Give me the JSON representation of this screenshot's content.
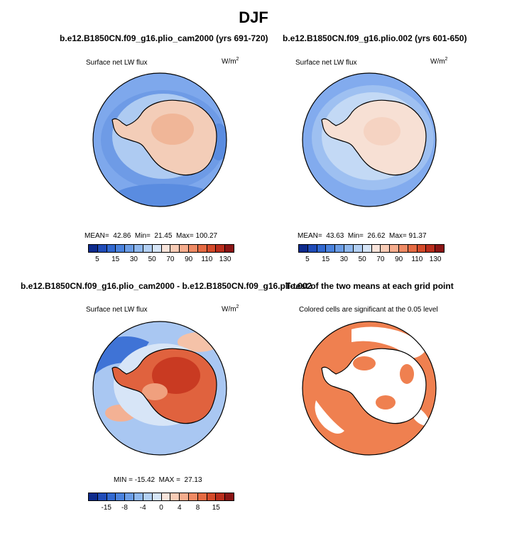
{
  "figure_title": "DJF",
  "units_label": "W/m",
  "units_exp": "2",
  "panels": [
    {
      "title": "b.e12.B1850CN.f09_g16.plio_cam2000 (yrs 691-720)",
      "variable": "Surface net LW flux",
      "stats": {
        "mean_label": "MEAN=",
        "mean": "42.86",
        "min_label": "Min=",
        "min": "21.45",
        "max_label": "Max=",
        "max": "100.27"
      }
    },
    {
      "title": "b.e12.B1850CN.f09_g16.plio.002 (yrs 601-650)",
      "variable": "Surface net LW flux",
      "stats": {
        "mean_label": "MEAN=",
        "mean": "43.63",
        "min_label": "Min=",
        "min": "26.62",
        "max_label": "Max=",
        "max": "91.37"
      }
    },
    {
      "title": "b.e12.B1850CN.f09_g16.plio_cam2000 - b.e12.B1850CN.f09_g16.plio.002",
      "variable": "Surface net LW flux",
      "stats": {
        "min_label": "MIN =",
        "min": "-15.42",
        "max_label": "MAX =",
        "max": "27.13"
      }
    },
    {
      "title": "T-test of the two means at each grid point",
      "note": "Colored cells are significant at the 0.05 level"
    }
  ],
  "colorbar_abs": {
    "colors": [
      "#0d2a8c",
      "#1f4bb8",
      "#3168d0",
      "#4a82dd",
      "#6b9de6",
      "#8fb8ee",
      "#b3d0f4",
      "#d6e5f7",
      "#f7e3da",
      "#f8cbb5",
      "#f5ac8d",
      "#ef8a64",
      "#e56a42",
      "#d44a2a",
      "#b92d1c",
      "#8a1414"
    ],
    "ticks": [
      "5",
      "15",
      "30",
      "50",
      "70",
      "90",
      "110",
      "130"
    ]
  },
  "colorbar_diff": {
    "colors": [
      "#0d2a8c",
      "#1f4bb8",
      "#3168d0",
      "#4a82dd",
      "#6b9de6",
      "#8fb8ee",
      "#b3d0f4",
      "#d6e5f7",
      "#f7e3da",
      "#f8cbb5",
      "#f5ac8d",
      "#ef8a64",
      "#e56a42",
      "#d44a2a",
      "#b92d1c",
      "#8a1414"
    ],
    "ticks": [
      "-15",
      "-8",
      "-4",
      "0",
      "4",
      "8",
      "15"
    ]
  }
}
